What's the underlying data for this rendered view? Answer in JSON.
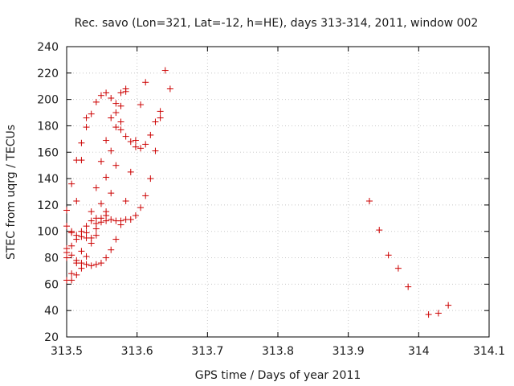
{
  "chart_data": {
    "type": "scatter",
    "title": "Rec. savo (Lon=321, Lat=-12, h=HE), days 313-314, 2011, window 002",
    "xlabel": "GPS time / Days of year 2011",
    "ylabel": "STEC from uqrg / TECUs",
    "xlim": [
      313.5,
      314.1
    ],
    "ylim": [
      20,
      240
    ],
    "xticks": [
      313.5,
      313.6,
      313.7,
      313.8,
      313.9,
      314.0,
      314.1
    ],
    "xtick_labels": [
      "313.5",
      "313.6",
      "313.7",
      "313.8",
      "313.9",
      "314",
      "314.1"
    ],
    "yticks": [
      20,
      40,
      60,
      80,
      100,
      120,
      140,
      160,
      180,
      200,
      220,
      240
    ],
    "ytick_labels": [
      "20",
      "40",
      "60",
      "80",
      "100",
      "120",
      "140",
      "160",
      "180",
      "200",
      "220",
      "240"
    ],
    "grid": true,
    "marker": "+",
    "color": "#cc0000",
    "series": [
      {
        "name": "STEC",
        "points": [
          [
            313.5,
            63
          ],
          [
            313.5,
            80
          ],
          [
            313.5,
            84
          ],
          [
            313.5,
            87
          ],
          [
            313.5,
            104
          ],
          [
            313.5,
            116
          ],
          [
            313.507,
            63
          ],
          [
            313.507,
            68
          ],
          [
            313.507,
            82
          ],
          [
            313.507,
            89
          ],
          [
            313.507,
            99
          ],
          [
            313.507,
            100
          ],
          [
            313.507,
            136
          ],
          [
            313.514,
            67
          ],
          [
            313.514,
            76
          ],
          [
            313.514,
            78
          ],
          [
            313.514,
            94
          ],
          [
            313.514,
            97
          ],
          [
            313.514,
            123
          ],
          [
            313.514,
            154
          ],
          [
            313.521,
            72
          ],
          [
            313.521,
            76
          ],
          [
            313.521,
            85
          ],
          [
            313.521,
            96
          ],
          [
            313.521,
            100
          ],
          [
            313.521,
            154
          ],
          [
            313.521,
            167
          ],
          [
            313.528,
            75
          ],
          [
            313.528,
            81
          ],
          [
            313.528,
            95
          ],
          [
            313.528,
            99
          ],
          [
            313.528,
            104
          ],
          [
            313.528,
            179
          ],
          [
            313.528,
            186
          ],
          [
            313.535,
            74
          ],
          [
            313.535,
            91
          ],
          [
            313.535,
            95
          ],
          [
            313.535,
            108
          ],
          [
            313.535,
            115
          ],
          [
            313.535,
            189
          ],
          [
            313.542,
            75
          ],
          [
            313.542,
            97
          ],
          [
            313.542,
            102
          ],
          [
            313.542,
            106
          ],
          [
            313.542,
            110
          ],
          [
            313.542,
            133
          ],
          [
            313.542,
            198
          ],
          [
            313.549,
            76
          ],
          [
            313.549,
            107
          ],
          [
            313.549,
            110
          ],
          [
            313.549,
            121
          ],
          [
            313.549,
            153
          ],
          [
            313.549,
            203
          ],
          [
            313.556,
            80
          ],
          [
            313.556,
            108
          ],
          [
            313.556,
            112
          ],
          [
            313.556,
            115
          ],
          [
            313.556,
            141
          ],
          [
            313.556,
            169
          ],
          [
            313.556,
            205
          ],
          [
            313.563,
            86
          ],
          [
            313.563,
            109
          ],
          [
            313.563,
            129
          ],
          [
            313.563,
            161
          ],
          [
            313.563,
            186
          ],
          [
            313.563,
            201
          ],
          [
            313.57,
            94
          ],
          [
            313.57,
            108
          ],
          [
            313.57,
            150
          ],
          [
            313.57,
            179
          ],
          [
            313.57,
            190
          ],
          [
            313.57,
            197
          ],
          [
            313.577,
            105
          ],
          [
            313.577,
            108
          ],
          [
            313.577,
            177
          ],
          [
            313.577,
            183
          ],
          [
            313.577,
            195
          ],
          [
            313.577,
            205
          ],
          [
            313.584,
            109
          ],
          [
            313.584,
            123
          ],
          [
            313.584,
            172
          ],
          [
            313.584,
            206
          ],
          [
            313.584,
            208
          ],
          [
            313.591,
            109
          ],
          [
            313.591,
            145
          ],
          [
            313.591,
            168
          ],
          [
            313.598,
            112
          ],
          [
            313.598,
            164
          ],
          [
            313.598,
            169
          ],
          [
            313.605,
            118
          ],
          [
            313.605,
            163
          ],
          [
            313.605,
            196
          ],
          [
            313.612,
            127
          ],
          [
            313.612,
            166
          ],
          [
            313.612,
            213
          ],
          [
            313.619,
            140
          ],
          [
            313.619,
            173
          ],
          [
            313.626,
            161
          ],
          [
            313.626,
            183
          ],
          [
            313.633,
            186
          ],
          [
            313.633,
            191
          ],
          [
            313.64,
            222
          ],
          [
            313.647,
            208
          ],
          [
            313.93,
            123
          ],
          [
            313.944,
            101
          ],
          [
            313.957,
            82
          ],
          [
            313.971,
            72
          ],
          [
            313.985,
            58
          ],
          [
            314.014,
            37
          ],
          [
            314.028,
            38
          ],
          [
            314.042,
            44
          ]
        ]
      }
    ]
  }
}
